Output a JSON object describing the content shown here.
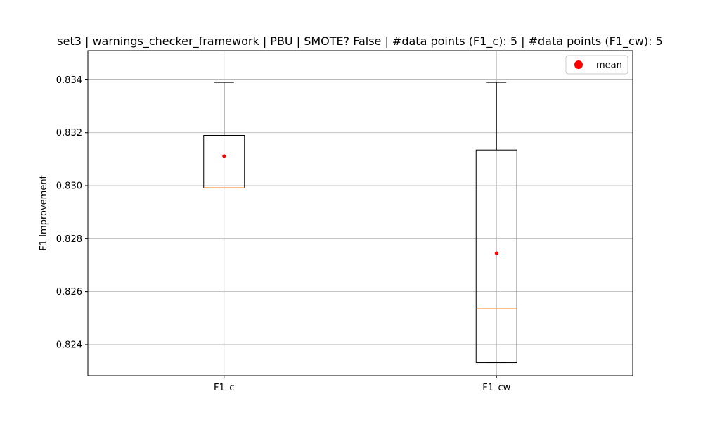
{
  "chart_data": {
    "type": "box",
    "title": "set3 | warnings_checker_framework | PBU | SMOTE? False | #data points (F1_c): 5 | #data points (F1_cw): 5",
    "xlabel": "",
    "ylabel": "F1 Improvement",
    "categories": [
      "F1_c",
      "F1_cw"
    ],
    "ylim": [
      0.82283,
      0.8351
    ],
    "yticks": [
      0.824,
      0.826,
      0.828,
      0.83,
      0.832,
      0.834
    ],
    "ytick_labels": [
      "0.824",
      "0.826",
      "0.828",
      "0.830",
      "0.832",
      "0.834"
    ],
    "grid": true,
    "legend": {
      "position": "top-right",
      "entries": [
        {
          "label": "mean",
          "marker": "circle",
          "color": "#ff0000"
        }
      ]
    },
    "boxes": [
      {
        "label": "F1_c",
        "whisker_low": 0.82992,
        "q1": 0.82992,
        "median": 0.82992,
        "q3": 0.8319,
        "whisker_high": 0.8339,
        "mean": 0.83112
      },
      {
        "label": "F1_cw",
        "whisker_low": 0.82332,
        "q1": 0.82332,
        "median": 0.82535,
        "q3": 0.83135,
        "whisker_high": 0.8339,
        "mean": 0.82745
      }
    ],
    "colors": {
      "box": "#000000",
      "median": "#ff7f0e",
      "mean": "#ff0000",
      "grid": "#b0b0b0"
    }
  }
}
